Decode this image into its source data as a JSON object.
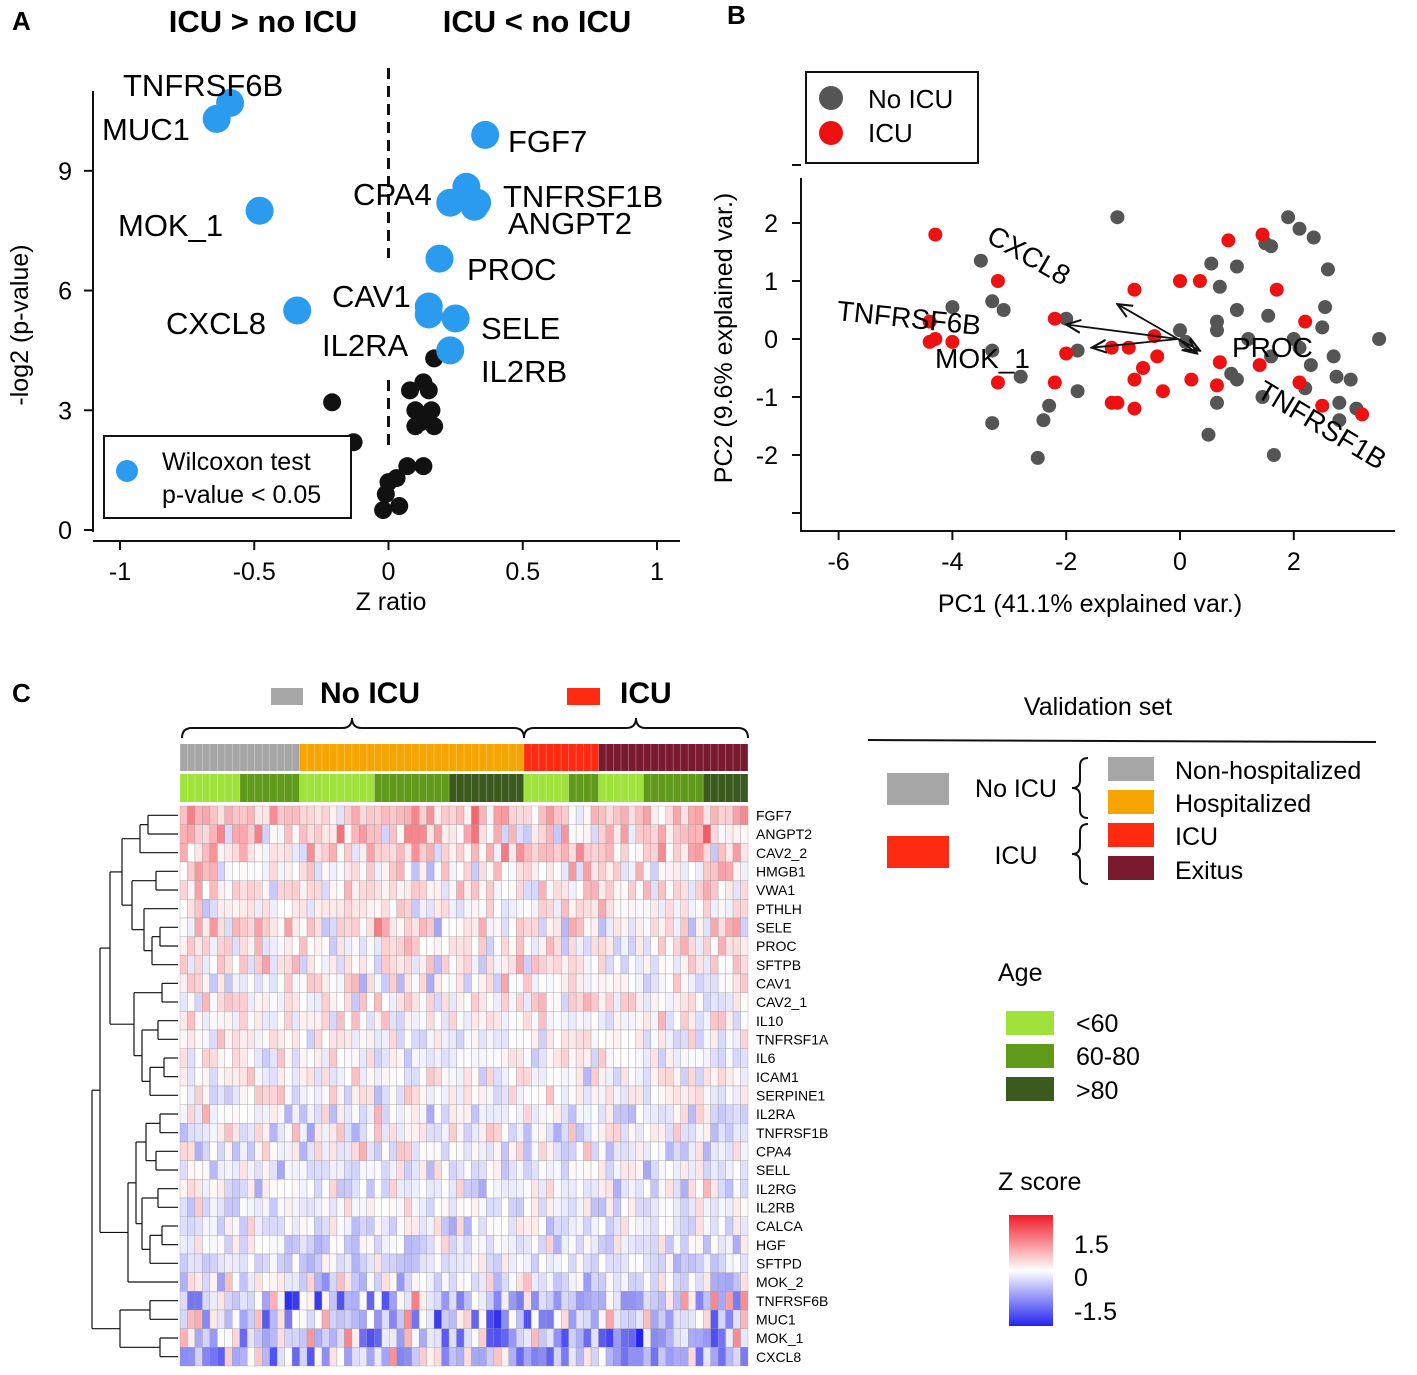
{
  "colors": {
    "sig_point": "#2a9bef",
    "nonsig_point": "#111111",
    "no_icu_point": "#555555",
    "icu_point": "#ee1111",
    "no_icu_group": "#a6a6a6",
    "icu_group": "#ff2a10",
    "non_hospitalized": "#a6a6a6",
    "hospitalized": "#f6a500",
    "icu_status": "#ff2a10",
    "exitus": "#7a1a2e",
    "age_lt60": "#9fe23c",
    "age_60_80": "#5f9a1a",
    "age_gt80": "#3b5a1d",
    "z_high": "#f01c2a",
    "z_mid": "#ffffff",
    "z_low": "#2424f0"
  },
  "panel_labels": {
    "a": "A",
    "b": "B",
    "c": "C"
  },
  "chart_data": [
    {
      "panel": "A",
      "type": "scatter",
      "title_left": "ICU > no ICU",
      "title_right": "ICU < no ICU",
      "xlabel": "Z ratio",
      "ylabel": "-log2 (p-value)",
      "xlim": [
        -1,
        1
      ],
      "ylim": [
        0,
        11
      ],
      "xticks": [
        -1,
        -0.5,
        0,
        0.5,
        1
      ],
      "xtick_labels": [
        "-1",
        "-0.5",
        "0",
        "0.5",
        "1"
      ],
      "yticks": [
        0,
        3,
        6,
        9
      ],
      "ytick_labels": [
        "0",
        "3",
        "6",
        "9"
      ],
      "reference_line_x": 0,
      "legend": {
        "symbol": "sig",
        "line1": "Wilcoxon test",
        "line2": "p-value < 0.05",
        "position": "bottom-left"
      },
      "significant": [
        {
          "label": "TNFRSF6B",
          "x": -0.59,
          "y": 10.7
        },
        {
          "label": "MUC1",
          "x": -0.64,
          "y": 10.3
        },
        {
          "label": "MOK_1",
          "x": -0.48,
          "y": 8.0
        },
        {
          "label": "CXCL8",
          "x": -0.34,
          "y": 5.5
        },
        {
          "label": "FGF7",
          "x": 0.36,
          "y": 9.9
        },
        {
          "label": "CPA4",
          "x": 0.29,
          "y": 8.6
        },
        {
          "label": "",
          "x": 0.23,
          "y": 8.2
        },
        {
          "label": "TNFRSF1B",
          "x": 0.33,
          "y": 8.2
        },
        {
          "label": "ANGPT2",
          "x": 0.32,
          "y": 8.1
        },
        {
          "label": "PROC",
          "x": 0.19,
          "y": 6.8
        },
        {
          "label": "CAV1",
          "x": 0.15,
          "y": 5.6
        },
        {
          "label": "IL2RA",
          "x": 0.15,
          "y": 5.4
        },
        {
          "label": "SELE",
          "x": 0.25,
          "y": 5.3
        },
        {
          "label": "IL2RB",
          "x": 0.23,
          "y": 4.5
        }
      ],
      "nonsignificant": [
        {
          "x": -0.21,
          "y": 3.2
        },
        {
          "x": -0.13,
          "y": 2.2
        },
        {
          "x": 0.17,
          "y": 4.3
        },
        {
          "x": 0.13,
          "y": 3.7
        },
        {
          "x": 0.08,
          "y": 3.5
        },
        {
          "x": 0.15,
          "y": 3.5
        },
        {
          "x": 0.1,
          "y": 3.0
        },
        {
          "x": 0.16,
          "y": 3.0
        },
        {
          "x": 0.1,
          "y": 2.6
        },
        {
          "x": 0.17,
          "y": 2.6
        },
        {
          "x": 0.12,
          "y": 2.7
        },
        {
          "x": 0.07,
          "y": 1.6
        },
        {
          "x": 0.13,
          "y": 1.6
        },
        {
          "x": 0.03,
          "y": 1.3
        },
        {
          "x": 0.0,
          "y": 1.2
        },
        {
          "x": -0.01,
          "y": 0.9
        },
        {
          "x": 0.04,
          "y": 0.6
        },
        {
          "x": -0.02,
          "y": 0.5
        }
      ]
    },
    {
      "panel": "B",
      "type": "scatter",
      "xlabel": "PC1 (41.1% explained var.)",
      "ylabel": "PC2 (9.6% explained var.)",
      "xlim": [
        -6.6,
        4.0
      ],
      "ylim": [
        -3.2,
        2.8
      ],
      "xticks": [
        -6,
        -4,
        -2,
        0,
        2
      ],
      "xtick_labels": [
        "-6",
        "-4",
        "-2",
        "0",
        "2"
      ],
      "yticks": [
        -2,
        -1,
        0,
        1,
        2
      ],
      "ytick_labels": [
        "-2",
        "-1",
        "0",
        "1",
        "2"
      ],
      "legend": {
        "no_icu": "No ICU",
        "icu": "ICU",
        "position": "top-left"
      },
      "loadings": [
        {
          "label": "CXCL8",
          "x": -1.1,
          "y": 0.6,
          "angle": 28
        },
        {
          "label": "TNFRSF6B",
          "x": -2.0,
          "y": 0.25,
          "angle": 4
        },
        {
          "label": "MOK_1",
          "x": -1.55,
          "y": -0.15,
          "angle": 0
        },
        {
          "label": "PROC",
          "x": 0.35,
          "y": -0.2,
          "angle": 0
        },
        {
          "label": "TNFRSF1B",
          "x": 0.3,
          "y": -0.25,
          "angle": 30
        }
      ],
      "no_icu_points": [
        [
          -1.1,
          2.1
        ],
        [
          1.9,
          2.1
        ],
        [
          2.1,
          1.9
        ],
        [
          2.35,
          1.75
        ],
        [
          1.5,
          1.65
        ],
        [
          1.6,
          1.6
        ],
        [
          -3.5,
          1.35
        ],
        [
          2.6,
          1.2
        ],
        [
          0.55,
          1.3
        ],
        [
          1.0,
          1.25
        ],
        [
          -3.3,
          0.65
        ],
        [
          -4.0,
          0.55
        ],
        [
          -3.1,
          0.5
        ],
        [
          -2.0,
          0.35
        ],
        [
          0.7,
          0.9
        ],
        [
          1.0,
          0.5
        ],
        [
          1.55,
          0.4
        ],
        [
          2.55,
          0.55
        ],
        [
          2.5,
          0.2
        ],
        [
          0.65,
          0.3
        ],
        [
          0.65,
          0.15
        ],
        [
          0.0,
          0.15
        ],
        [
          -1.8,
          -0.2
        ],
        [
          0.1,
          -0.05
        ],
        [
          1.2,
          0.0
        ],
        [
          2.0,
          0.0
        ],
        [
          2.7,
          -0.3
        ],
        [
          3.5,
          0.0
        ],
        [
          -2.8,
          -0.65
        ],
        [
          -3.3,
          -0.2
        ],
        [
          -1.8,
          -0.9
        ],
        [
          -2.3,
          -1.15
        ],
        [
          -2.4,
          -1.4
        ],
        [
          -3.3,
          -1.45
        ],
        [
          0.5,
          -1.65
        ],
        [
          0.65,
          -1.1
        ],
        [
          1.0,
          -0.7
        ],
        [
          1.45,
          -1.0
        ],
        [
          1.6,
          -0.3
        ],
        [
          2.1,
          -0.15
        ],
        [
          2.3,
          -0.45
        ],
        [
          2.75,
          -0.65
        ],
        [
          2.8,
          -1.1
        ],
        [
          3.0,
          -0.7
        ],
        [
          2.8,
          -1.4
        ],
        [
          -2.5,
          -2.05
        ],
        [
          1.65,
          -2.0
        ],
        [
          0.9,
          -0.6
        ],
        [
          3.1,
          -1.2
        ],
        [
          2.2,
          -0.85
        ]
      ],
      "icu_points": [
        [
          -4.3,
          1.8
        ],
        [
          0.85,
          1.7
        ],
        [
          1.45,
          1.8
        ],
        [
          -3.2,
          1.0
        ],
        [
          0.0,
          1.0
        ],
        [
          0.35,
          1.0
        ],
        [
          1.7,
          0.85
        ],
        [
          -0.8,
          0.85
        ],
        [
          -2.2,
          0.35
        ],
        [
          2.2,
          0.3
        ],
        [
          -4.4,
          0.3
        ],
        [
          -4.3,
          0.0
        ],
        [
          -4.4,
          -0.05
        ],
        [
          -4.0,
          -0.05
        ],
        [
          -0.45,
          0.05
        ],
        [
          -2.0,
          -0.25
        ],
        [
          -1.2,
          -0.15
        ],
        [
          -0.9,
          -0.15
        ],
        [
          -0.4,
          -0.3
        ],
        [
          -3.2,
          -0.75
        ],
        [
          -2.2,
          -0.75
        ],
        [
          -0.8,
          -0.7
        ],
        [
          0.2,
          -0.7
        ],
        [
          0.7,
          -0.4
        ],
        [
          -0.65,
          -0.5
        ],
        [
          0.65,
          -0.8
        ],
        [
          -1.2,
          -1.1
        ],
        [
          -1.1,
          -1.1
        ],
        [
          -0.8,
          -1.2
        ],
        [
          -0.3,
          -0.9
        ],
        [
          2.1,
          -0.75
        ],
        [
          2.5,
          -1.15
        ],
        [
          3.2,
          -1.3
        ],
        [
          1.4,
          -0.45
        ]
      ]
    },
    {
      "panel": "C",
      "type": "heatmap",
      "title": "Validation set",
      "group_no_icu": "No ICU",
      "group_icu": "ICU",
      "status_legend": [
        "Non-hospitalized",
        "Hospitalized",
        "ICU",
        "Exitus"
      ],
      "age_title": "Age",
      "age_legend": [
        "<60",
        "60-80",
        ">80"
      ],
      "z_title": "Z score",
      "z_ticks": [
        "1.5",
        "0",
        "-1.5"
      ],
      "zlim": [
        -1.5,
        1.5
      ],
      "n_samples": 76,
      "rows": [
        "FGF7",
        "ANGPT2",
        "CAV2_2",
        "HMGB1",
        "VWA1",
        "PTHLH",
        "SELE",
        "PROC",
        "SFTPB",
        "CAV1",
        "CAV2_1",
        "IL10",
        "TNFRSF1A",
        "IL6",
        "ICAM1",
        "SERPINE1",
        "IL2RA",
        "TNFRSF1B",
        "CPA4",
        "SELL",
        "IL2RG",
        "IL2RB",
        "CALCA",
        "HGF",
        "SFTPD",
        "MOK_2",
        "TNFRSF6B",
        "MUC1",
        "MOK_1",
        "CXCL8"
      ],
      "row_bias": [
        0.35,
        0.3,
        0.25,
        0.15,
        0.15,
        0.1,
        0.15,
        0.1,
        0.1,
        0.0,
        0.05,
        0.0,
        0.0,
        0.0,
        0.0,
        0.0,
        -0.05,
        -0.05,
        -0.05,
        -0.1,
        -0.1,
        -0.1,
        -0.1,
        -0.15,
        -0.15,
        -0.2,
        -0.3,
        -0.3,
        -0.35,
        -0.35
      ],
      "row_spread": [
        0.45,
        0.45,
        0.4,
        0.35,
        0.35,
        0.3,
        0.45,
        0.35,
        0.35,
        0.35,
        0.35,
        0.3,
        0.3,
        0.3,
        0.3,
        0.3,
        0.35,
        0.35,
        0.35,
        0.3,
        0.35,
        0.3,
        0.3,
        0.3,
        0.3,
        0.4,
        0.75,
        0.75,
        0.75,
        0.65
      ],
      "status_segments": [
        {
          "status": "non_hospitalized",
          "count": 16
        },
        {
          "status": "hospitalized",
          "count": 30
        },
        {
          "status": "icu_status",
          "count": 10
        },
        {
          "status": "exitus",
          "count": 20
        }
      ],
      "age_segments": [
        {
          "age": "age_lt60",
          "count": 8
        },
        {
          "age": "age_60_80",
          "count": 8
        },
        {
          "age": "age_lt60",
          "count": 10
        },
        {
          "age": "age_60_80",
          "count": 10
        },
        {
          "age": "age_gt80",
          "count": 10
        },
        {
          "age": "age_lt60",
          "count": 6
        },
        {
          "age": "age_60_80",
          "count": 4
        },
        {
          "age": "age_lt60",
          "count": 6
        },
        {
          "age": "age_60_80",
          "count": 8
        },
        {
          "age": "age_gt80",
          "count": 6
        }
      ]
    }
  ]
}
